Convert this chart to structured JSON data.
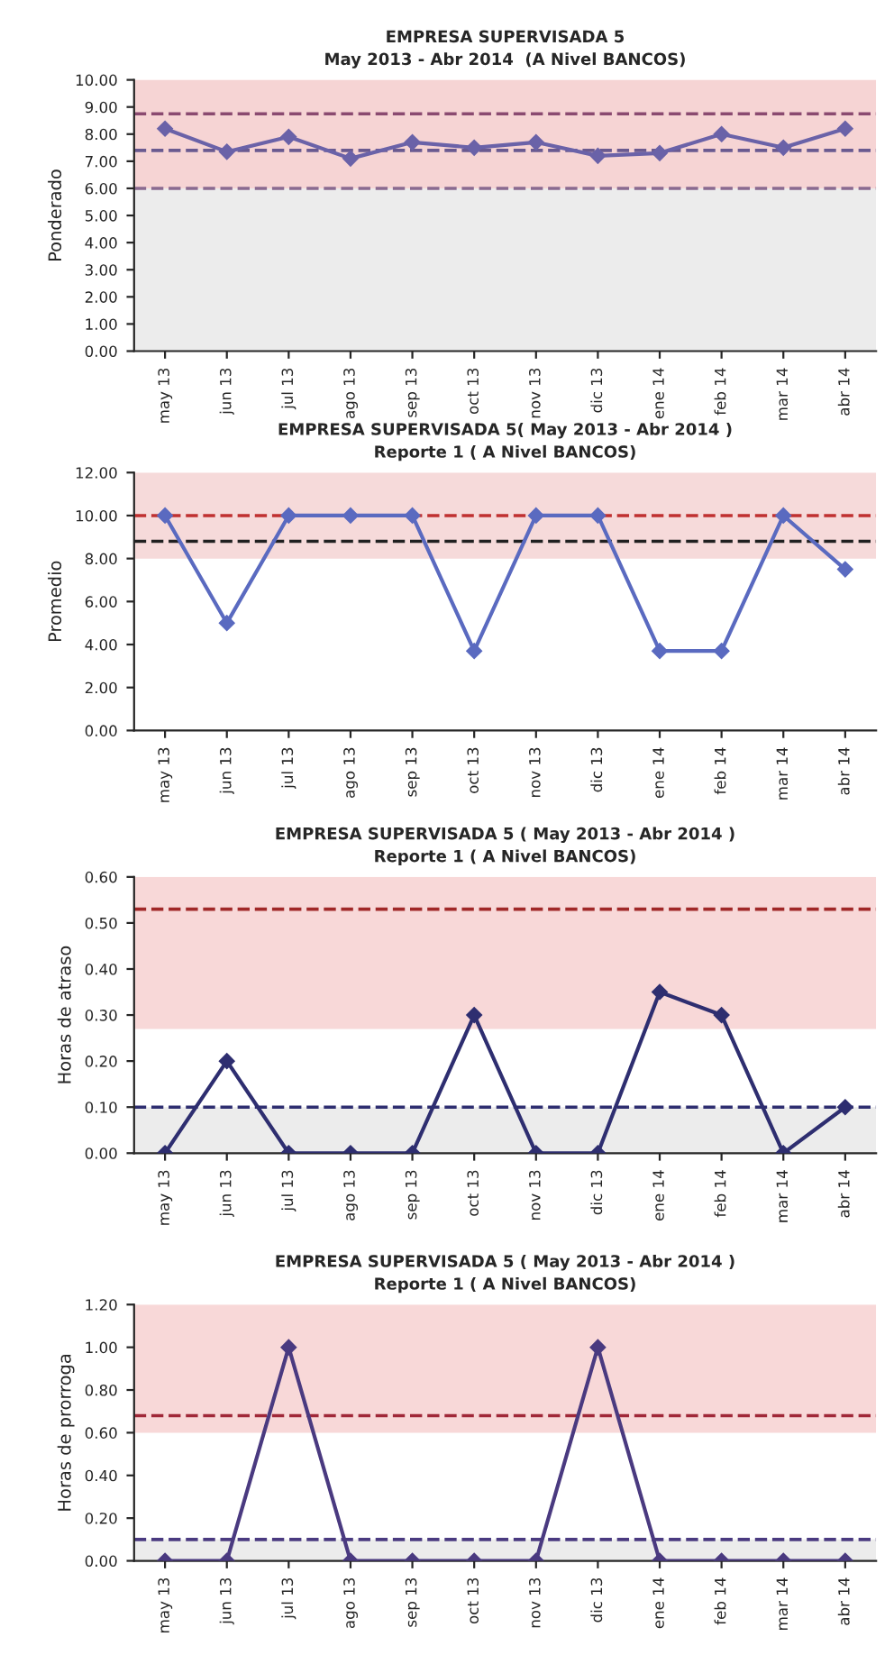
{
  "chart_data": [
    {
      "type": "line",
      "title": "EMPRESA SUPERVISADA 5",
      "subtitle": "May 2013 - Abr 2014  (A Nivel BANCOS)",
      "ylabel": "Ponderado",
      "categories": [
        "may 13",
        "jun 13",
        "jul 13",
        "ago 13",
        "sep 13",
        "oct 13",
        "nov 13",
        "dic 13",
        "ene 14",
        "feb 14",
        "mar 14",
        "abr 14"
      ],
      "series": [
        {
          "color": "#6a62a8",
          "values": [
            8.2,
            7.35,
            7.9,
            7.1,
            7.7,
            7.5,
            7.7,
            7.2,
            7.3,
            8.0,
            7.5,
            8.2
          ]
        }
      ],
      "ylim": [
        0,
        10
      ],
      "yticks": [
        {
          "value": 0,
          "label": "0.00"
        },
        {
          "value": 1,
          "label": "1.00"
        },
        {
          "value": 2,
          "label": "2.00"
        },
        {
          "value": 3,
          "label": "3.00"
        },
        {
          "value": 4,
          "label": "4.00"
        },
        {
          "value": 5,
          "label": "5.00"
        },
        {
          "value": 6,
          "label": "6.00"
        },
        {
          "value": 7,
          "label": "7.00"
        },
        {
          "value": 8,
          "label": "8.00"
        },
        {
          "value": 9,
          "label": "9.00"
        },
        {
          "value": 10,
          "label": "10.00"
        }
      ],
      "ref_lines": [
        {
          "axis": "y",
          "value": 8.75,
          "color": "#8a4a70",
          "line_style": "dashed"
        },
        {
          "axis": "y",
          "value": 7.4,
          "color": "#6a5a90",
          "line_style": "dashed"
        },
        {
          "axis": "y",
          "value": 6.0,
          "color": "#8a6a90",
          "line_style": "dashed"
        }
      ],
      "bands": [
        {
          "axis": "y",
          "from": 6,
          "to": 10,
          "color": "#f6d4d4"
        },
        {
          "axis": "y",
          "from": 0,
          "to": 6,
          "color": "#ececec"
        }
      ],
      "marker": "diamond",
      "grid": false,
      "legend": false
    },
    {
      "type": "line",
      "title": "EMPRESA SUPERVISADA 5( May 2013 - Abr 2014 )",
      "subtitle": "Reporte 1 ( A Nivel BANCOS)",
      "ylabel": "Promedio",
      "categories": [
        "may 13",
        "jun 13",
        "jul 13",
        "ago 13",
        "sep 13",
        "oct 13",
        "nov 13",
        "dic 13",
        "ene 14",
        "feb 14",
        "mar 14",
        "abr 14"
      ],
      "series": [
        {
          "color": "#5a6ac0",
          "values": [
            10,
            5,
            10,
            10,
            10,
            3.7,
            10,
            10,
            3.7,
            3.7,
            10,
            7.5
          ]
        }
      ],
      "ylim": [
        0,
        12
      ],
      "yticks": [
        {
          "value": 0,
          "label": "0.00"
        },
        {
          "value": 2,
          "label": "2.00"
        },
        {
          "value": 4,
          "label": "4.00"
        },
        {
          "value": 6,
          "label": "6.00"
        },
        {
          "value": 8,
          "label": "8.00"
        },
        {
          "value": 10,
          "label": "10.00"
        },
        {
          "value": 12,
          "label": "12.00"
        }
      ],
      "ref_lines": [
        {
          "axis": "y",
          "value": 10.0,
          "color": "#c03030",
          "line_style": "dashed"
        },
        {
          "axis": "y",
          "value": 8.8,
          "color": "#202020",
          "line_style": "dashed"
        }
      ],
      "bands": [
        {
          "axis": "y",
          "from": 8,
          "to": 12,
          "color": "#f6dada"
        }
      ],
      "marker": "diamond",
      "grid": false,
      "legend": false
    },
    {
      "type": "line",
      "title": "EMPRESA SUPERVISADA 5 ( May 2013 - Abr 2014 )",
      "subtitle": "Reporte 1 ( A Nivel BANCOS)",
      "ylabel": "Horas de atraso",
      "categories": [
        "may 13",
        "jun 13",
        "jul 13",
        "ago 13",
        "sep 13",
        "oct 13",
        "nov 13",
        "dic 13",
        "ene 14",
        "feb 14",
        "mar 14",
        "abr 14"
      ],
      "series": [
        {
          "color": "#2e2e70",
          "values": [
            0,
            0.2,
            0,
            0,
            0,
            0.3,
            0,
            0,
            0.35,
            0.3,
            0,
            0.1
          ]
        }
      ],
      "ylim": [
        0,
        0.6
      ],
      "yticks": [
        {
          "value": 0,
          "label": "0.00"
        },
        {
          "value": 0.1,
          "label": "0.10"
        },
        {
          "value": 0.2,
          "label": "0.20"
        },
        {
          "value": 0.3,
          "label": "0.30"
        },
        {
          "value": 0.4,
          "label": "0.40"
        },
        {
          "value": 0.5,
          "label": "0.50"
        },
        {
          "value": 0.6,
          "label": "0.60"
        }
      ],
      "ref_lines": [
        {
          "axis": "y",
          "value": 0.53,
          "color": "#a02828",
          "line_style": "dashed"
        },
        {
          "axis": "y",
          "value": 0.1,
          "color": "#2e2e70",
          "line_style": "dashed"
        }
      ],
      "bands": [
        {
          "axis": "y",
          "from": 0.27,
          "to": 0.6,
          "color": "#f8d8d8"
        },
        {
          "axis": "y",
          "from": 0,
          "to": 0.1,
          "color": "#ececec"
        }
      ],
      "marker": "diamond",
      "grid": false,
      "legend": false
    },
    {
      "type": "line",
      "title": "EMPRESA SUPERVISADA 5 ( May 2013 - Abr 2014 )",
      "subtitle": "Reporte 1 ( A Nivel BANCOS)",
      "ylabel": "Horas de prorroga",
      "categories": [
        "may 13",
        "jun 13",
        "jul 13",
        "ago 13",
        "sep 13",
        "oct 13",
        "nov 13",
        "dic 13",
        "ene 14",
        "feb 14",
        "mar 14",
        "abr 14"
      ],
      "series": [
        {
          "color": "#4a3a80",
          "values": [
            0,
            0,
            1.0,
            0,
            0,
            0,
            0,
            1.0,
            0,
            0,
            0,
            0
          ]
        }
      ],
      "ylim": [
        0,
        1.2
      ],
      "yticks": [
        {
          "value": 0,
          "label": "0.00"
        },
        {
          "value": 0.2,
          "label": "0.20"
        },
        {
          "value": 0.4,
          "label": "0.40"
        },
        {
          "value": 0.6,
          "label": "0.60"
        },
        {
          "value": 0.8,
          "label": "0.80"
        },
        {
          "value": 1.0,
          "label": "1.00"
        },
        {
          "value": 1.2,
          "label": "1.20"
        }
      ],
      "ref_lines": [
        {
          "axis": "y",
          "value": 0.68,
          "color": "#a02838",
          "line_style": "dashed"
        },
        {
          "axis": "y",
          "value": 0.1,
          "color": "#4a3a80",
          "line_style": "dashed"
        }
      ],
      "bands": [
        {
          "axis": "y",
          "from": 0.6,
          "to": 1.2,
          "color": "#f8d8d8"
        },
        {
          "axis": "y",
          "from": 0,
          "to": 0.1,
          "color": "#ececec"
        }
      ],
      "marker": "diamond",
      "grid": false,
      "legend": false
    }
  ]
}
